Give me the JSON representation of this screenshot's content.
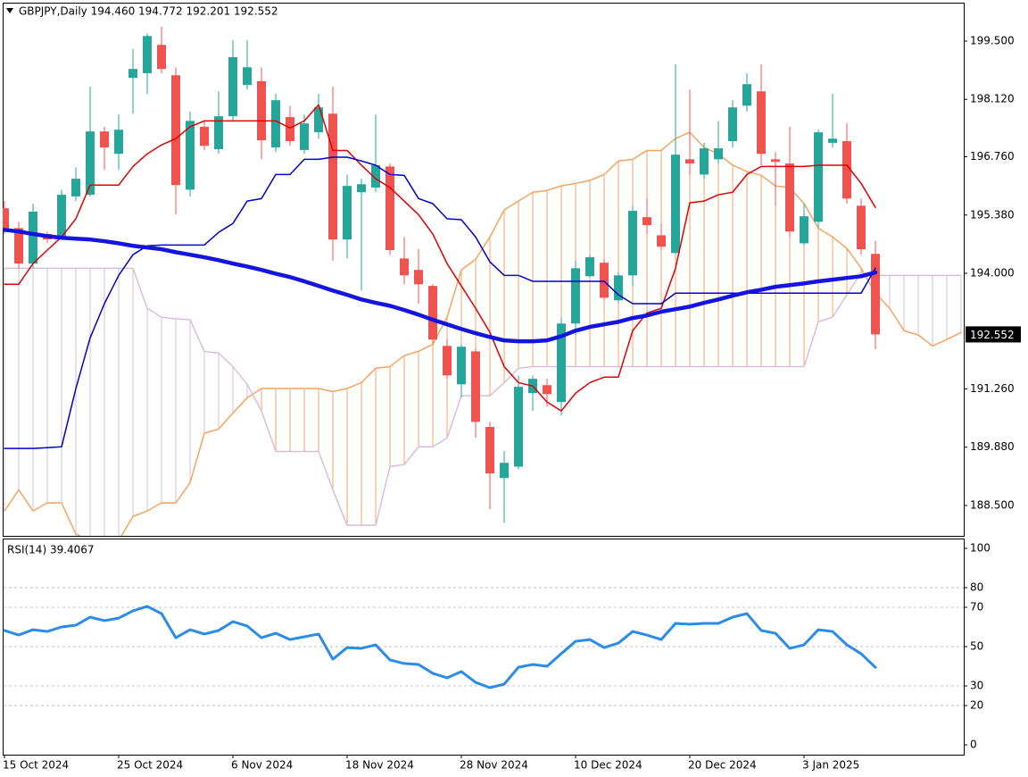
{
  "chart_data": [
    {
      "type": "candlestick",
      "title": "GBPJPY,Daily  194.460 194.772 192.201 192.552",
      "categories": [
        "15 Oct 2024",
        null,
        null,
        null,
        null,
        null,
        null,
        null,
        "25 Oct 2024",
        null,
        null,
        null,
        null,
        null,
        null,
        null,
        "6 Nov 2024",
        null,
        null,
        null,
        null,
        null,
        null,
        null,
        "18 Nov 2024",
        null,
        null,
        null,
        null,
        null,
        null,
        null,
        "28 Nov 2024",
        null,
        null,
        null,
        null,
        null,
        null,
        null,
        "10 Dec 2024",
        null,
        null,
        null,
        null,
        null,
        null,
        null,
        "20 Dec 2024",
        null,
        null,
        null,
        null,
        null,
        null,
        null,
        "3 Jan 2025",
        null,
        null,
        null,
        null,
        null,
        null,
        null,
        null,
        null,
        null,
        null
      ],
      "open": [
        195.54,
        195.07,
        194.23,
        194.93,
        194.86,
        195.82,
        195.86,
        197.36,
        196.83,
        198.63,
        198.74,
        199.41,
        198.69,
        195.98,
        197.47,
        196.94,
        197.72,
        198.46,
        198.55,
        196.98,
        197.7,
        196.92,
        197.34,
        197.78,
        194.8,
        195.92,
        196.03,
        196.53,
        194.35,
        194.08,
        193.7,
        192.28,
        191.37,
        192.15,
        190.36,
        189.15,
        189.42,
        191.16,
        191.35,
        190.95,
        192.81,
        193.93,
        194.25,
        193.36,
        193.95,
        195.33,
        194.9,
        194.48,
        196.7,
        196.34,
        196.7,
        197.13,
        197.97,
        198.31,
        196.7,
        196.6,
        194.71,
        195.22,
        197.09,
        197.13,
        195.6,
        194.46,
        null,
        null,
        null,
        null,
        null,
        null
      ],
      "high": [
        195.71,
        195.22,
        195.65,
        194.99,
        195.98,
        196.51,
        198.42,
        197.47,
        197.76,
        199.31,
        199.68,
        199.84,
        198.88,
        197.83,
        197.61,
        198.31,
        199.52,
        199.52,
        198.88,
        198.25,
        197.97,
        197.76,
        198.25,
        198.42,
        196.34,
        196.24,
        197.76,
        196.6,
        194.86,
        194.57,
        193.74,
        192.43,
        192.32,
        192.22,
        190.48,
        189.79,
        191.58,
        191.58,
        191.5,
        192.96,
        194.29,
        194.44,
        194.33,
        194.02,
        195.6,
        195.77,
        195.18,
        198.95,
        198.35,
        197.09,
        197.61,
        198.1,
        198.74,
        198.95,
        196.87,
        197.47,
        195.65,
        197.4,
        198.25,
        197.55,
        195.77,
        194.772,
        null,
        null,
        null,
        null,
        null,
        null
      ],
      "low": [
        194.93,
        194.12,
        194.12,
        194.71,
        194.8,
        195.71,
        195.82,
        196.45,
        196.45,
        197.78,
        198.25,
        198.74,
        195.39,
        195.82,
        196.92,
        196.83,
        197.61,
        198.35,
        196.7,
        196.87,
        197.02,
        196.83,
        197.19,
        194.29,
        194.35,
        193.59,
        195.92,
        194.44,
        193.74,
        193.28,
        192.32,
        191.5,
        191.06,
        190.1,
        188.41,
        188.09,
        189.36,
        190.74,
        190.85,
        190.63,
        192.54,
        193.91,
        193.36,
        193.28,
        193.7,
        194.93,
        194.55,
        194.44,
        196.34,
        196.24,
        196.6,
        196.98,
        197.83,
        196.56,
        195.6,
        194.86,
        194.65,
        195.07,
        196.98,
        195.65,
        194.44,
        192.201,
        null,
        null,
        null,
        null,
        null,
        null
      ],
      "close": [
        195.07,
        194.23,
        195.46,
        194.8,
        195.86,
        196.24,
        197.36,
        196.98,
        197.4,
        198.84,
        199.62,
        198.84,
        196.09,
        197.61,
        197.02,
        197.72,
        199.12,
        198.88,
        197.15,
        198.1,
        197.13,
        197.55,
        197.93,
        194.8,
        196.07,
        196.11,
        196.56,
        194.55,
        193.95,
        193.74,
        192.43,
        191.58,
        192.26,
        190.48,
        189.26,
        189.51,
        191.31,
        191.5,
        191.14,
        192.81,
        194.12,
        194.38,
        193.42,
        193.95,
        195.48,
        195.14,
        194.63,
        196.81,
        196.6,
        196.96,
        196.96,
        197.93,
        198.48,
        196.83,
        196.64,
        194.99,
        195.35,
        197.34,
        197.19,
        195.77,
        194.57,
        192.552,
        null,
        null,
        null,
        null,
        null,
        null
      ],
      "up_color": "#26a69a",
      "down_color": "#ef5350",
      "lines": [
        {
          "color": "#e00000",
          "width": 1.5,
          "values": [
            193.74,
            193.74,
            194.23,
            194.55,
            194.86,
            195.29,
            196.09,
            196.09,
            196.09,
            196.53,
            196.83,
            197.04,
            197.19,
            197.47,
            197.61,
            197.61,
            197.61,
            197.61,
            197.61,
            197.61,
            197.44,
            197.61,
            197.99,
            196.91,
            196.91,
            196.56,
            196.24,
            196.03,
            195.71,
            195.39,
            194.93,
            194.23,
            193.7,
            193.17,
            192.6,
            191.79,
            191.41,
            191.33,
            190.95,
            190.74,
            191.16,
            191.41,
            191.54,
            191.54,
            192.64,
            193.06,
            193.17,
            194.12,
            195.67,
            195.71,
            195.86,
            195.92,
            196.34,
            196.53,
            196.53,
            196.53,
            196.53,
            196.56,
            196.56,
            196.56,
            196.13,
            195.56,
            null,
            null,
            null,
            null,
            null,
            null
          ]
        },
        {
          "color": "#0000cc",
          "width": 1.5,
          "values": [
            189.85,
            189.85,
            189.85,
            189.87,
            189.89,
            191.27,
            192.47,
            193.28,
            193.95,
            194.44,
            194.65,
            194.67,
            194.67,
            194.67,
            194.67,
            194.97,
            195.18,
            195.71,
            195.77,
            196.34,
            196.34,
            196.7,
            196.7,
            196.75,
            196.75,
            196.66,
            196.56,
            196.34,
            196.32,
            195.77,
            195.65,
            195.29,
            195.27,
            194.86,
            194.27,
            193.95,
            193.95,
            193.81,
            193.81,
            193.81,
            193.81,
            193.81,
            193.81,
            193.49,
            193.28,
            193.28,
            193.28,
            193.53,
            193.53,
            193.53,
            193.53,
            193.53,
            193.53,
            193.53,
            193.53,
            193.53,
            193.53,
            193.53,
            193.53,
            193.53,
            193.53,
            194.12,
            null,
            null,
            null,
            null,
            null,
            null
          ]
        },
        {
          "color": "#1414e0",
          "width": 4.5,
          "values": [
            195.03,
            194.99,
            194.93,
            194.88,
            194.84,
            194.82,
            194.8,
            194.76,
            194.71,
            194.65,
            194.61,
            194.57,
            194.5,
            194.44,
            194.38,
            194.31,
            194.23,
            194.16,
            194.08,
            193.99,
            193.91,
            193.81,
            193.7,
            193.59,
            193.49,
            193.38,
            193.3,
            193.23,
            193.13,
            193.02,
            192.9,
            192.79,
            192.68,
            192.58,
            192.49,
            192.41,
            192.39,
            192.39,
            192.41,
            192.51,
            192.64,
            192.73,
            192.79,
            192.85,
            192.94,
            193.0,
            193.09,
            193.15,
            193.21,
            193.3,
            193.38,
            193.47,
            193.55,
            193.61,
            193.68,
            193.72,
            193.76,
            193.81,
            193.85,
            193.89,
            193.93,
            194.02,
            null,
            null,
            null,
            null,
            null,
            null
          ]
        }
      ],
      "cloud": {
        "span_a_color": "#f4a460",
        "span_b_color": "#d8bfd8",
        "span_a": [
          188.37,
          188.87,
          188.37,
          188.56,
          188.56,
          187.82,
          187.67,
          187.67,
          187.67,
          188.24,
          188.37,
          188.56,
          188.56,
          189.04,
          190.21,
          190.31,
          190.69,
          191.05,
          191.27,
          191.27,
          191.27,
          191.27,
          191.27,
          191.2,
          191.27,
          191.41,
          191.75,
          191.79,
          192.05,
          192.15,
          192.32,
          192.96,
          194.08,
          194.33,
          194.86,
          195.5,
          195.71,
          195.92,
          195.96,
          196.07,
          196.13,
          196.2,
          196.34,
          196.66,
          196.7,
          196.91,
          196.91,
          197.19,
          197.34,
          196.98,
          196.83,
          196.56,
          196.41,
          196.32,
          196.07,
          196.03,
          195.65,
          195.07,
          194.86,
          194.59,
          194.12,
          193.53,
          193.17,
          192.64,
          192.54,
          192.28,
          192.43,
          192.6
        ],
        "span_b": [
          194.12,
          194.12,
          194.12,
          194.12,
          194.12,
          194.12,
          194.12,
          194.12,
          194.12,
          194.12,
          193.17,
          192.96,
          192.92,
          192.9,
          192.15,
          192.11,
          191.79,
          191.37,
          190.74,
          189.78,
          189.78,
          189.78,
          189.78,
          188.87,
          188.03,
          188.03,
          188.03,
          189.42,
          189.47,
          189.89,
          189.89,
          190.1,
          191.1,
          191.1,
          191.1,
          191.41,
          191.75,
          191.79,
          191.79,
          191.79,
          191.79,
          191.79,
          191.79,
          191.79,
          191.79,
          191.79,
          191.79,
          191.79,
          191.79,
          191.79,
          191.79,
          191.79,
          191.79,
          191.79,
          191.79,
          191.79,
          191.79,
          192.85,
          192.96,
          193.49,
          194.02,
          193.95,
          193.95,
          193.95,
          193.95,
          193.95,
          193.95,
          193.95
        ]
      },
      "last_price": 192.552,
      "ylim": [
        187.78,
        200.41
      ],
      "yticks": [
        {
          "value": 188.5,
          "label": "188.500"
        },
        {
          "value": 189.88,
          "label": "189.880"
        },
        {
          "value": 191.26,
          "label": "191.260"
        },
        {
          "value": 194.0,
          "label": "194.000"
        },
        {
          "value": 195.38,
          "label": "195.380"
        },
        {
          "value": 196.76,
          "label": "196.760"
        },
        {
          "value": 198.12,
          "label": "198.120"
        },
        {
          "value": 199.5,
          "label": "199.500"
        }
      ]
    },
    {
      "type": "line",
      "title": "RSI(14) 39.4067",
      "color": "#2b8ce8",
      "values": [
        58.2,
        55.9,
        58.6,
        57.7,
        60,
        60.9,
        65,
        63.2,
        64.5,
        68.2,
        70.5,
        66.8,
        54.5,
        58.6,
        56.4,
        58.2,
        62.7,
        60.5,
        54.5,
        56.8,
        53.6,
        55,
        56.4,
        43.6,
        49.5,
        49.1,
        50.9,
        43.2,
        41.4,
        40.9,
        36.4,
        34.1,
        37.3,
        31.8,
        29.1,
        30.9,
        39.5,
        40.9,
        40,
        46.4,
        52.7,
        53.6,
        49.5,
        51.8,
        57.7,
        55.9,
        53.6,
        61.8,
        61.4,
        61.8,
        61.8,
        65,
        66.8,
        58.2,
        56.8,
        49.1,
        50.9,
        58.6,
        57.7,
        50.9,
        46.4,
        39.4067,
        null,
        null,
        null,
        null,
        null,
        null
      ],
      "ylim": [
        -5,
        105
      ],
      "yticks": [
        0,
        20,
        30,
        50,
        70,
        80,
        100
      ]
    }
  ]
}
